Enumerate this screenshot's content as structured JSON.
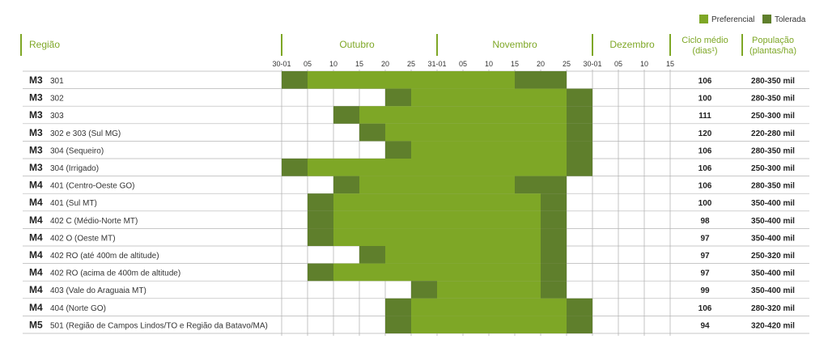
{
  "legend": [
    {
      "label": "Preferencial",
      "color": "#7ea726"
    },
    {
      "label": "Tolerada",
      "color": "#5f7f2c"
    }
  ],
  "header": {
    "regiao": "Região",
    "months": [
      "Outubro",
      "Novembro",
      "Dezembro"
    ],
    "ciclo_title": "Ciclo médio",
    "ciclo_unit": "(dias¹)",
    "pop_title": "População",
    "pop_unit": "(plantas/ha)"
  },
  "colors": {
    "accent": "#7ea726",
    "preferencial": "#7ea726",
    "tolerada": "#5f7f2c",
    "grid": "#b5b5b5",
    "header_text": "#7ea726"
  },
  "chart_data": {
    "type": "table",
    "columns": [
      "30-01",
      "05",
      "10",
      "15",
      "20",
      "25",
      "31-01",
      "05",
      "10",
      "15",
      "20",
      "25",
      "30-01",
      "05",
      "10",
      "15"
    ],
    "legend": [
      "Preferencial",
      "Tolerada"
    ],
    "rows": [
      {
        "group": "M3",
        "region": "301",
        "cells": [
          "T",
          "P",
          "P",
          "P",
          "P",
          "P",
          "P",
          "P",
          "P",
          "T",
          "T",
          "",
          "",
          "",
          "",
          ""
        ],
        "ciclo": "106",
        "populacao": "280-350 mil"
      },
      {
        "group": "M3",
        "region": "302",
        "cells": [
          "",
          "",
          "",
          "",
          "T",
          "P",
          "P",
          "P",
          "P",
          "P",
          "P",
          "T",
          "",
          "",
          "",
          ""
        ],
        "ciclo": "100",
        "populacao": "280-350 mil"
      },
      {
        "group": "M3",
        "region": "303",
        "cells": [
          "",
          "",
          "T",
          "P",
          "P",
          "P",
          "P",
          "P",
          "P",
          "P",
          "P",
          "T",
          "",
          "",
          "",
          ""
        ],
        "ciclo": "111",
        "populacao": "250-300 mil"
      },
      {
        "group": "M3",
        "region": "302 e 303 (Sul MG)",
        "cells": [
          "",
          "",
          "",
          "T",
          "P",
          "P",
          "P",
          "P",
          "P",
          "P",
          "P",
          "T",
          "",
          "",
          "",
          ""
        ],
        "ciclo": "120",
        "populacao": "220-280 mil"
      },
      {
        "group": "M3",
        "region": "304 (Sequeiro)",
        "cells": [
          "",
          "",
          "",
          "",
          "T",
          "P",
          "P",
          "P",
          "P",
          "P",
          "P",
          "T",
          "",
          "",
          "",
          ""
        ],
        "ciclo": "106",
        "populacao": "280-350 mil"
      },
      {
        "group": "M3",
        "region": "304 (Irrigado)",
        "cells": [
          "T",
          "P",
          "P",
          "P",
          "P",
          "P",
          "P",
          "P",
          "P",
          "P",
          "P",
          "T",
          "",
          "",
          "",
          ""
        ],
        "ciclo": "106",
        "populacao": "250-300 mil"
      },
      {
        "group": "M4",
        "region": "401 (Centro-Oeste GO)",
        "cells": [
          "",
          "",
          "T",
          "P",
          "P",
          "P",
          "P",
          "P",
          "P",
          "T",
          "T",
          "",
          "",
          "",
          "",
          ""
        ],
        "ciclo": "106",
        "populacao": "280-350 mil"
      },
      {
        "group": "M4",
        "region": "401 (Sul MT)",
        "cells": [
          "",
          "T",
          "P",
          "P",
          "P",
          "P",
          "P",
          "P",
          "P",
          "P",
          "T",
          "",
          "",
          "",
          "",
          ""
        ],
        "ciclo": "100",
        "populacao": "350-400 mil"
      },
      {
        "group": "M4",
        "region": "402 C (Médio-Norte MT)",
        "cells": [
          "",
          "T",
          "P",
          "P",
          "P",
          "P",
          "P",
          "P",
          "P",
          "P",
          "T",
          "",
          "",
          "",
          "",
          ""
        ],
        "ciclo": "98",
        "populacao": "350-400 mil"
      },
      {
        "group": "M4",
        "region": "402 O (Oeste MT)",
        "cells": [
          "",
          "T",
          "P",
          "P",
          "P",
          "P",
          "P",
          "P",
          "P",
          "P",
          "T",
          "",
          "",
          "",
          "",
          ""
        ],
        "ciclo": "97",
        "populacao": "350-400 mil"
      },
      {
        "group": "M4",
        "region": "402 RO (até 400m de altitude)",
        "cells": [
          "",
          "",
          "",
          "T",
          "P",
          "P",
          "P",
          "P",
          "P",
          "P",
          "T",
          "",
          "",
          "",
          "",
          ""
        ],
        "ciclo": "97",
        "populacao": "250-320 mil"
      },
      {
        "group": "M4",
        "region": "402 RO (acima de 400m de altitude)",
        "cells": [
          "",
          "T",
          "P",
          "P",
          "P",
          "P",
          "P",
          "P",
          "P",
          "P",
          "T",
          "",
          "",
          "",
          "",
          ""
        ],
        "ciclo": "97",
        "populacao": "350-400 mil"
      },
      {
        "group": "M4",
        "region": "403 (Vale do Araguaia MT)",
        "cells": [
          "",
          "",
          "",
          "",
          "",
          "T",
          "P",
          "P",
          "P",
          "P",
          "T",
          "",
          "",
          "",
          "",
          ""
        ],
        "ciclo": "99",
        "populacao": "350-400 mil"
      },
      {
        "group": "M4",
        "region": "404 (Norte GO)",
        "cells": [
          "",
          "",
          "",
          "",
          "T",
          "P",
          "P",
          "P",
          "P",
          "P",
          "P",
          "T",
          "",
          "",
          "",
          ""
        ],
        "ciclo": "106",
        "populacao": "280-320 mil"
      },
      {
        "group": "M5",
        "region": "501 (Região de Campos Lindos/TO e Região da Batavo/MA)",
        "cells": [
          "",
          "",
          "",
          "",
          "T",
          "P",
          "P",
          "P",
          "P",
          "P",
          "P",
          "T",
          "",
          "",
          "",
          ""
        ],
        "ciclo": "94",
        "populacao": "320-420 mil"
      }
    ]
  }
}
